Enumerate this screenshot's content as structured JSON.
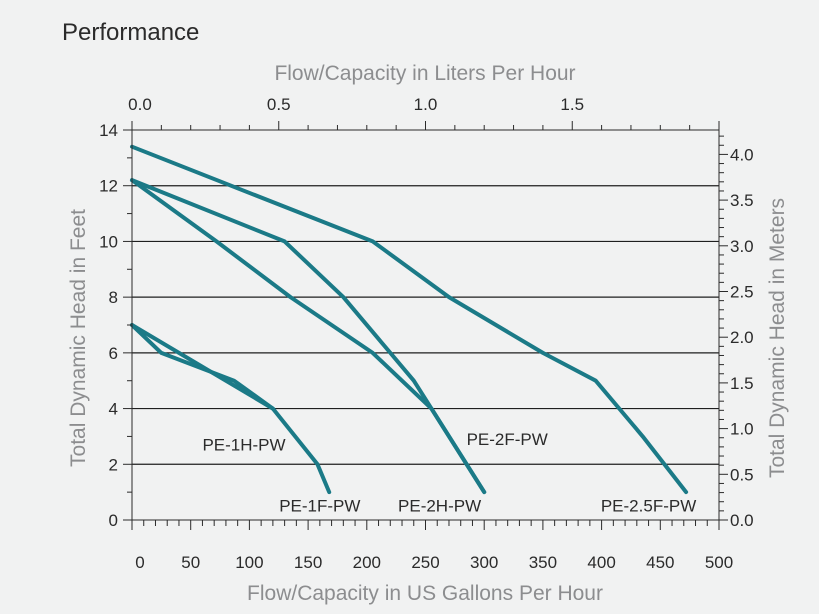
{
  "chart_data": {
    "type": "line",
    "title": "Performance",
    "xlabel": "Flow/Capacity in US Gallons Per Hour",
    "x2label": "Flow/Capacity in Liters Per Hour",
    "ylabel": "Total Dynamic Head in Feet",
    "y2label": "Total Dynamic Head in Meters",
    "xlim": [
      0,
      500
    ],
    "ylim": [
      0,
      14
    ],
    "x2lim": [
      0,
      2.0
    ],
    "y2lim": [
      0,
      4.267
    ],
    "x_ticks": [
      0,
      50,
      100,
      150,
      200,
      250,
      300,
      350,
      400,
      450,
      500
    ],
    "x_tick_labels": [
      "0",
      "50",
      "100",
      "150",
      "200",
      "250",
      "300",
      "350",
      "400",
      "450",
      "500"
    ],
    "y_ticks": [
      0,
      2,
      4,
      6,
      8,
      10,
      12,
      14
    ],
    "y_tick_labels": [
      "0",
      "2",
      "4",
      "6",
      "8",
      "10",
      "12",
      "14"
    ],
    "x2_ticks": [
      0.0,
      0.5,
      1.0,
      1.5
    ],
    "x2_tick_labels": [
      "0.0",
      "0.5",
      "1.0",
      "1.5"
    ],
    "y2_ticks": [
      0.0,
      0.5,
      1.0,
      1.5,
      2.0,
      2.5,
      3.0,
      3.5,
      4.0
    ],
    "y2_tick_labels": [
      "0.0",
      "0.5",
      "1.0",
      "1.5",
      "2.0",
      "2.5",
      "3.0",
      "3.5",
      "4.0"
    ],
    "grid": "horizontal",
    "line_color": "#1b7a87",
    "series": [
      {
        "name": "PE-1H-PW",
        "label": "PE-1H-PW",
        "x": [
          0,
          25,
          87,
          120
        ],
        "y": [
          7,
          6,
          5,
          4
        ]
      },
      {
        "name": "PE-1F-PW",
        "label": "PE-1F-PW",
        "x": [
          0,
          120,
          158,
          168
        ],
        "y": [
          7,
          4,
          2,
          1
        ]
      },
      {
        "name": "PE-2H-PW",
        "label": "PE-2H-PW",
        "x": [
          0,
          72,
          135,
          205,
          255,
          300
        ],
        "y": [
          12.2,
          10,
          8,
          6,
          4,
          1
        ]
      },
      {
        "name": "PE-2F-PW",
        "label": "PE-2F-PW",
        "x": [
          0,
          130,
          180,
          240,
          300
        ],
        "y": [
          12.2,
          10,
          8,
          5,
          1
        ]
      },
      {
        "name": "PE-2.5F-PW",
        "label": "PE-2.5F-PW",
        "x": [
          0,
          205,
          270,
          350,
          395,
          435,
          472
        ],
        "y": [
          13.4,
          10,
          8,
          6,
          5,
          3,
          1
        ]
      }
    ]
  }
}
